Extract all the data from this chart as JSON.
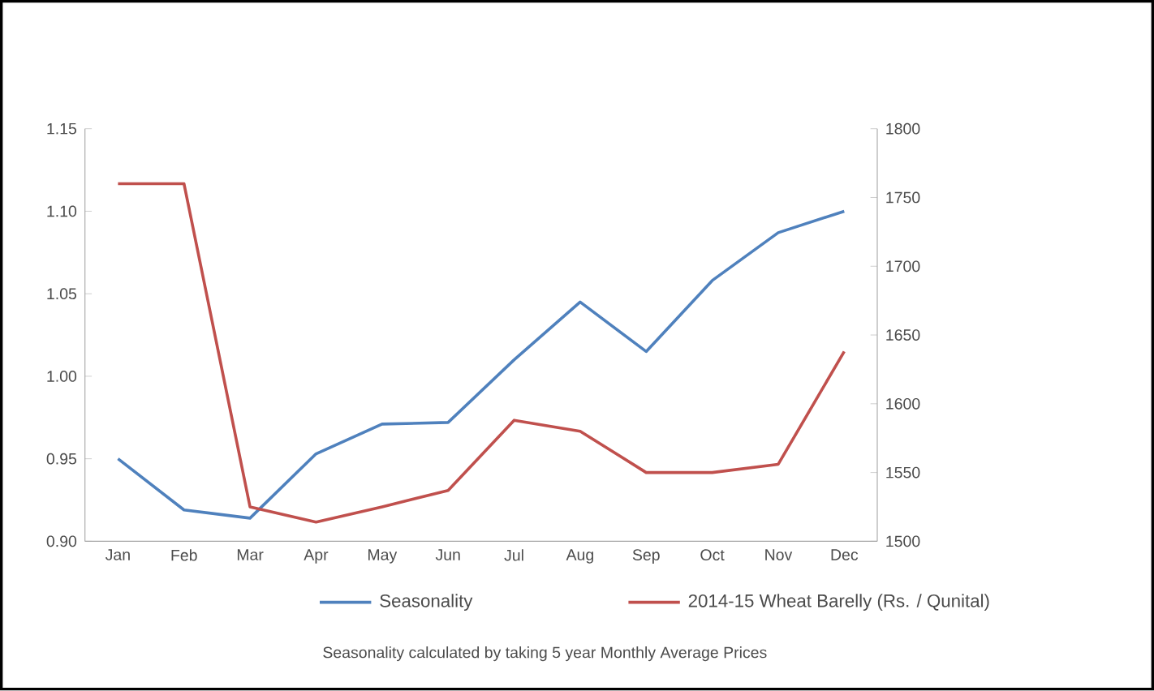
{
  "chart_data": {
    "type": "line",
    "categories": [
      "Jan",
      "Feb",
      "Mar",
      "Apr",
      "May",
      "Jun",
      "Jul",
      "Aug",
      "Sep",
      "Oct",
      "Nov",
      "Dec"
    ],
    "series": [
      {
        "name": "Seasonality",
        "color": "#4f81bd",
        "values": [
          0.95,
          0.919,
          0.914,
          0.953,
          0.971,
          0.972,
          1.01,
          1.045,
          1.015,
          1.058,
          1.087,
          1.1
        ]
      },
      {
        "name": "2014-15 Wheat Barelly (Rs. / Qunital)",
        "color": "#c0504d",
        "axis": "y2",
        "values": [
          1760,
          1760,
          1525,
          1514,
          1525,
          1537,
          1588,
          1580,
          1550,
          1550,
          1556,
          1638
        ]
      }
    ],
    "ylim": [
      0.9,
      1.15
    ],
    "yticks": [
      {
        "value": 0.9,
        "label": "0.90"
      },
      {
        "value": 0.95,
        "label": "0.95"
      },
      {
        "value": 1.0,
        "label": "1.00"
      },
      {
        "value": 1.05,
        "label": "1.05"
      },
      {
        "value": 1.1,
        "label": "1.10"
      },
      {
        "value": 1.15,
        "label": "1.15"
      }
    ],
    "y2lim": [
      1500,
      1800
    ],
    "y2ticks": [
      1500,
      1550,
      1600,
      1650,
      1700,
      1750,
      1800
    ],
    "legend": "bottom",
    "grid": false,
    "marker": "none",
    "line_style": "solid",
    "annotations": [
      "Seasonality calculated by taking 5 year Monthly Average Prices"
    ]
  }
}
